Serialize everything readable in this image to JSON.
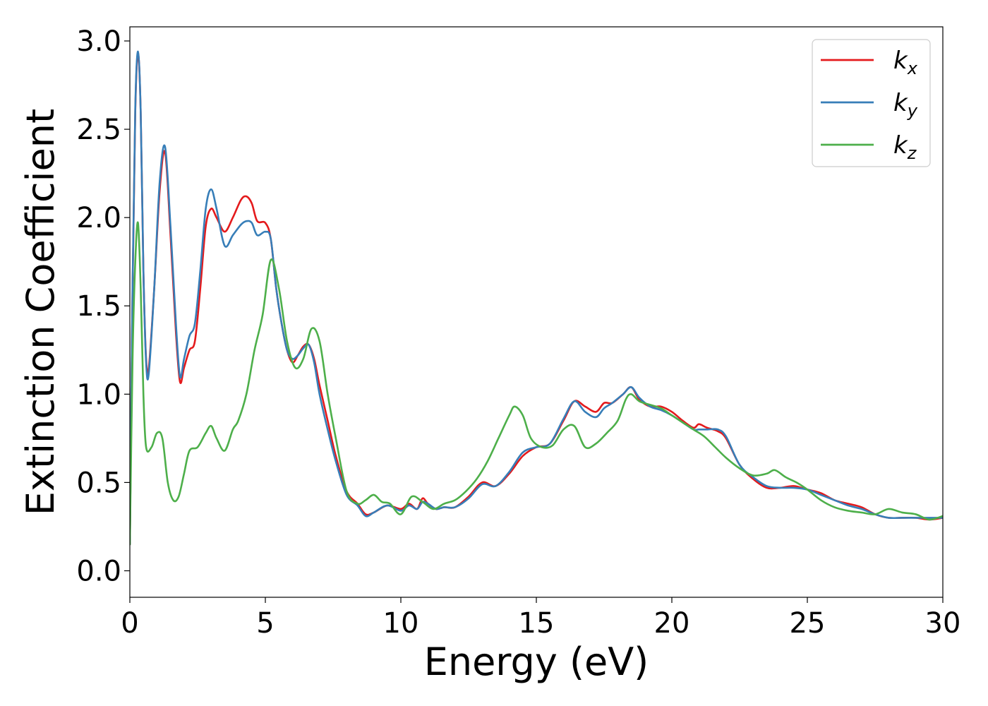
{
  "chart_data": {
    "type": "line",
    "xlabel": "Energy (eV)",
    "ylabel": "Extinction Coefficient",
    "xlim": [
      0,
      30
    ],
    "ylim": [
      -0.15,
      3.08
    ],
    "xticks": [
      0,
      5,
      10,
      15,
      20,
      25,
      30
    ],
    "yticks": [
      0.0,
      0.5,
      1.0,
      1.5,
      2.0,
      2.5,
      3.0
    ],
    "xtick_labels": [
      "0",
      "5",
      "10",
      "15",
      "20",
      "25",
      "30"
    ],
    "ytick_labels": [
      "0.0",
      "0.5",
      "1.0",
      "1.5",
      "2.0",
      "2.5",
      "3.0"
    ],
    "grid": false,
    "legend_position": "top-right",
    "series": [
      {
        "name": "k_x",
        "color": "#e41a1c",
        "x": [
          0,
          0.1,
          0.2,
          0.3,
          0.4,
          0.5,
          0.6,
          0.7,
          0.9,
          1.1,
          1.3,
          1.5,
          1.7,
          1.85,
          2.0,
          2.2,
          2.4,
          2.6,
          2.8,
          3.0,
          3.2,
          3.5,
          3.8,
          4.1,
          4.3,
          4.5,
          4.7,
          5.0,
          5.2,
          5.4,
          5.6,
          5.8,
          6.0,
          6.2,
          6.4,
          6.6,
          6.8,
          7.0,
          7.3,
          7.6,
          8.0,
          8.4,
          8.7,
          9.0,
          9.5,
          10.0,
          10.3,
          10.6,
          10.8,
          11.0,
          11.3,
          11.6,
          12.0,
          12.5,
          13.0,
          13.5,
          14.0,
          14.5,
          15.0,
          15.5,
          16.0,
          16.4,
          16.8,
          17.2,
          17.5,
          17.8,
          18.2,
          18.5,
          18.8,
          19.2,
          19.6,
          20.0,
          20.4,
          20.8,
          21.0,
          21.3,
          21.7,
          22.0,
          22.5,
          23.0,
          23.5,
          24.0,
          24.5,
          25.0,
          25.5,
          26.0,
          26.5,
          27.0,
          27.5,
          28.0,
          28.5,
          29.0,
          29.5,
          30.0
        ],
        "y": [
          0.15,
          1.6,
          2.6,
          2.93,
          2.6,
          1.7,
          1.2,
          1.15,
          1.6,
          2.15,
          2.37,
          1.9,
          1.35,
          1.07,
          1.15,
          1.25,
          1.3,
          1.6,
          1.95,
          2.05,
          2.0,
          1.92,
          2.0,
          2.1,
          2.12,
          2.08,
          1.98,
          1.97,
          1.88,
          1.6,
          1.4,
          1.25,
          1.18,
          1.22,
          1.27,
          1.28,
          1.2,
          1.05,
          0.85,
          0.65,
          0.45,
          0.38,
          0.32,
          0.33,
          0.37,
          0.35,
          0.38,
          0.35,
          0.41,
          0.38,
          0.35,
          0.36,
          0.36,
          0.42,
          0.5,
          0.48,
          0.55,
          0.65,
          0.7,
          0.72,
          0.85,
          0.96,
          0.93,
          0.9,
          0.95,
          0.95,
          1.0,
          1.04,
          0.97,
          0.93,
          0.93,
          0.9,
          0.85,
          0.81,
          0.83,
          0.81,
          0.79,
          0.75,
          0.6,
          0.52,
          0.47,
          0.47,
          0.48,
          0.46,
          0.44,
          0.4,
          0.38,
          0.36,
          0.32,
          0.3,
          0.3,
          0.3,
          0.29,
          0.3
        ]
      },
      {
        "name": "k_y",
        "color": "#377eb8",
        "x": [
          0,
          0.1,
          0.2,
          0.3,
          0.4,
          0.5,
          0.6,
          0.7,
          0.9,
          1.1,
          1.3,
          1.5,
          1.7,
          1.85,
          2.0,
          2.2,
          2.4,
          2.6,
          2.8,
          3.0,
          3.2,
          3.5,
          3.8,
          4.1,
          4.3,
          4.5,
          4.7,
          5.0,
          5.2,
          5.4,
          5.6,
          5.8,
          6.0,
          6.2,
          6.4,
          6.6,
          6.8,
          7.0,
          7.3,
          7.6,
          8.0,
          8.4,
          8.7,
          9.0,
          9.5,
          10.0,
          10.3,
          10.6,
          10.8,
          11.0,
          11.3,
          11.6,
          12.0,
          12.5,
          13.0,
          13.5,
          14.0,
          14.5,
          15.0,
          15.5,
          16.0,
          16.4,
          16.8,
          17.2,
          17.5,
          17.8,
          18.2,
          18.5,
          18.8,
          19.2,
          19.6,
          20.0,
          20.4,
          20.8,
          21.0,
          21.3,
          21.7,
          22.0,
          22.5,
          23.0,
          23.5,
          24.0,
          24.5,
          25.0,
          25.5,
          26.0,
          26.5,
          27.0,
          27.5,
          28.0,
          28.5,
          29.0,
          29.5,
          30.0
        ],
        "y": [
          0.15,
          1.62,
          2.62,
          2.94,
          2.6,
          1.7,
          1.18,
          1.12,
          1.6,
          2.2,
          2.4,
          1.95,
          1.4,
          1.1,
          1.2,
          1.33,
          1.4,
          1.7,
          2.05,
          2.16,
          2.05,
          1.84,
          1.9,
          1.96,
          1.98,
          1.97,
          1.9,
          1.92,
          1.88,
          1.6,
          1.4,
          1.25,
          1.2,
          1.22,
          1.26,
          1.28,
          1.18,
          1.0,
          0.8,
          0.62,
          0.43,
          0.37,
          0.31,
          0.33,
          0.37,
          0.34,
          0.37,
          0.35,
          0.39,
          0.38,
          0.35,
          0.36,
          0.36,
          0.41,
          0.49,
          0.48,
          0.56,
          0.67,
          0.7,
          0.72,
          0.86,
          0.96,
          0.9,
          0.87,
          0.92,
          0.95,
          1.0,
          1.04,
          0.98,
          0.93,
          0.91,
          0.88,
          0.84,
          0.8,
          0.8,
          0.8,
          0.8,
          0.76,
          0.6,
          0.53,
          0.48,
          0.47,
          0.47,
          0.46,
          0.43,
          0.4,
          0.37,
          0.35,
          0.32,
          0.3,
          0.3,
          0.3,
          0.3,
          0.3
        ]
      },
      {
        "name": "k_z",
        "color": "#4daf4a",
        "x": [
          0,
          0.1,
          0.2,
          0.3,
          0.4,
          0.5,
          0.6,
          0.8,
          1.0,
          1.2,
          1.4,
          1.6,
          1.8,
          2.0,
          2.2,
          2.5,
          2.8,
          3.0,
          3.2,
          3.5,
          3.8,
          4.0,
          4.3,
          4.6,
          4.9,
          5.2,
          5.5,
          5.8,
          6.1,
          6.4,
          6.7,
          7.0,
          7.3,
          7.6,
          8.0,
          8.4,
          8.7,
          9.0,
          9.3,
          9.6,
          10.0,
          10.4,
          10.8,
          11.2,
          11.6,
          12.0,
          12.4,
          12.8,
          13.2,
          13.6,
          14.0,
          14.2,
          14.5,
          14.8,
          15.2,
          15.6,
          16.0,
          16.4,
          16.8,
          17.2,
          17.6,
          18.0,
          18.3,
          18.5,
          18.8,
          19.2,
          19.6,
          20.0,
          20.4,
          20.8,
          21.2,
          21.6,
          22.0,
          22.5,
          23.0,
          23.5,
          23.8,
          24.2,
          24.6,
          25.0,
          25.5,
          26.0,
          26.5,
          27.0,
          27.5,
          28.0,
          28.5,
          29.0,
          29.5,
          30.0
        ],
        "y": [
          0.15,
          1.2,
          1.75,
          1.97,
          1.6,
          1.0,
          0.7,
          0.7,
          0.78,
          0.75,
          0.5,
          0.4,
          0.42,
          0.55,
          0.68,
          0.7,
          0.78,
          0.82,
          0.75,
          0.68,
          0.8,
          0.85,
          1.0,
          1.25,
          1.45,
          1.76,
          1.6,
          1.3,
          1.15,
          1.2,
          1.37,
          1.3,
          1.0,
          0.75,
          0.45,
          0.38,
          0.4,
          0.43,
          0.39,
          0.38,
          0.32,
          0.42,
          0.39,
          0.35,
          0.38,
          0.4,
          0.45,
          0.52,
          0.62,
          0.75,
          0.88,
          0.93,
          0.88,
          0.75,
          0.7,
          0.71,
          0.8,
          0.82,
          0.7,
          0.72,
          0.78,
          0.85,
          0.97,
          1.0,
          0.96,
          0.94,
          0.92,
          0.88,
          0.84,
          0.8,
          0.76,
          0.7,
          0.64,
          0.58,
          0.54,
          0.55,
          0.57,
          0.53,
          0.5,
          0.46,
          0.4,
          0.36,
          0.34,
          0.33,
          0.32,
          0.35,
          0.33,
          0.32,
          0.29,
          0.31
        ]
      }
    ],
    "legend": [
      {
        "base": "k",
        "sub": "x",
        "color": "#e41a1c"
      },
      {
        "base": "k",
        "sub": "y",
        "color": "#377eb8"
      },
      {
        "base": "k",
        "sub": "z",
        "color": "#4daf4a"
      }
    ]
  }
}
